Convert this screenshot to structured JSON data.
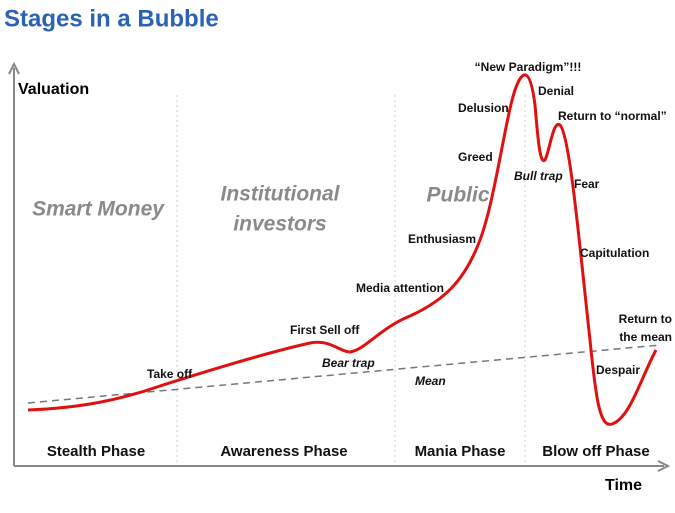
{
  "header": {
    "title": "Stages in a Bubble"
  },
  "axes": {
    "y_label": "Valuation",
    "x_label": "Time"
  },
  "groups": [
    "Smart Money",
    "Institutional",
    "investors",
    "Public"
  ],
  "phases": [
    "Stealth Phase",
    "Awareness Phase",
    "Mania Phase",
    "Blow off Phase"
  ],
  "annotations": [
    "“New Paradigm”!!!",
    "Denial",
    "Delusion",
    "Return to “normal”",
    "Greed",
    "Bull trap",
    "Fear",
    "Enthusiasm",
    "Capitulation",
    "Media attention",
    "First Sell off",
    "Bear trap",
    "Take off",
    "Mean",
    "Return to",
    "the mean",
    "Despair"
  ]
}
